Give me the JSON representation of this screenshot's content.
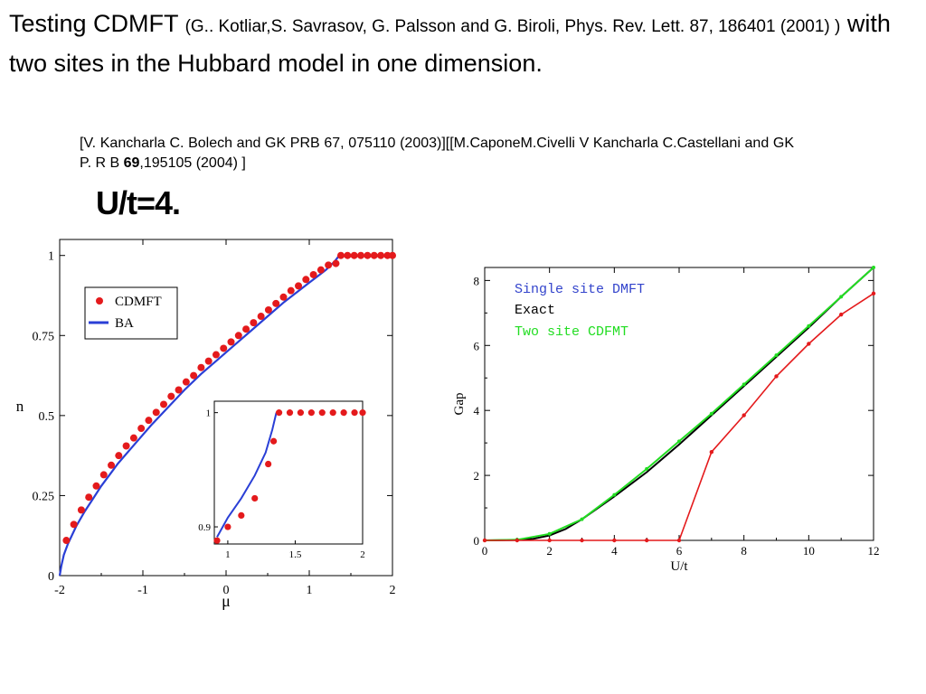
{
  "heading": {
    "part1": "Testing    CDMFT",
    "citation": "(G.. Kotliar,S. Savrasov, G. Palsson and G. Biroli, Phys. Rev. Lett. 87, 186401 (2001) )",
    "part2": "with two sites in  the Hubbard model in one dimension."
  },
  "references": {
    "text1": "[V.  Kancharla  C.  Bolech  and  GK    PRB  67,  075110  (2003)][[M.CaponeM.Civelli    V Kancharla C.Castellani and GK  P. R B",
    "volume": "69",
    "text2": ",195105 (2004) ]"
  },
  "subtitle": "U/t=4.",
  "chart_data": [
    {
      "type": "scatter",
      "xlabel": "μ",
      "ylabel": "n",
      "xlim": [
        -2,
        2
      ],
      "ylim": [
        0,
        1.05
      ],
      "x_ticks": [
        "-2",
        "-1",
        "0",
        "1",
        "2"
      ],
      "y_ticks": [
        "0",
        "0.25",
        "0.5",
        "0.75",
        "1"
      ],
      "legend_position": "top-left",
      "series": [
        {
          "name": "CDMFT",
          "color": "#e41a1c",
          "marker": "dot",
          "x": [
            -1.92,
            -1.83,
            -1.74,
            -1.65,
            -1.56,
            -1.47,
            -1.38,
            -1.29,
            -1.2,
            -1.11,
            -1.02,
            -0.93,
            -0.84,
            -0.75,
            -0.66,
            -0.57,
            -0.48,
            -0.39,
            -0.3,
            -0.21,
            -0.12,
            -0.03,
            0.06,
            0.15,
            0.24,
            0.33,
            0.42,
            0.51,
            0.6,
            0.69,
            0.78,
            0.87,
            0.96,
            1.05,
            1.14,
            1.23,
            1.32,
            1.38,
            1.46,
            1.54,
            1.62,
            1.7,
            1.78,
            1.86,
            1.94,
            2.0
          ],
          "y": [
            0.11,
            0.16,
            0.205,
            0.245,
            0.28,
            0.315,
            0.345,
            0.375,
            0.405,
            0.43,
            0.46,
            0.485,
            0.51,
            0.535,
            0.56,
            0.58,
            0.605,
            0.625,
            0.65,
            0.67,
            0.69,
            0.71,
            0.73,
            0.75,
            0.77,
            0.79,
            0.81,
            0.83,
            0.85,
            0.87,
            0.89,
            0.905,
            0.925,
            0.94,
            0.955,
            0.97,
            0.975,
            1,
            1,
            1,
            1,
            1,
            1,
            1,
            1,
            1
          ]
        },
        {
          "name": "BA",
          "color": "#2a3fd6",
          "marker": "line",
          "x": [
            -2.0,
            -1.98,
            -1.95,
            -1.9,
            -1.8,
            -1.7,
            -1.6,
            -1.5,
            -1.3,
            -1.1,
            -0.9,
            -0.7,
            -0.5,
            -0.3,
            -0.1,
            0.1,
            0.3,
            0.5,
            0.7,
            0.9,
            1.0,
            1.1,
            1.2,
            1.26,
            1.3,
            1.33,
            1.36
          ],
          "y": [
            0,
            0.03,
            0.065,
            0.1,
            0.155,
            0.2,
            0.24,
            0.28,
            0.35,
            0.41,
            0.47,
            0.525,
            0.58,
            0.63,
            0.675,
            0.72,
            0.765,
            0.81,
            0.855,
            0.895,
            0.915,
            0.935,
            0.955,
            0.97,
            0.98,
            0.99,
            1.0
          ]
        }
      ],
      "inset": {
        "xlim": [
          0.9,
          2.0
        ],
        "ylim": [
          0.885,
          1.01
        ],
        "x_ticks": [
          "1",
          "1.5",
          "2"
        ],
        "y_ticks": [
          "0.9",
          "1"
        ],
        "series": [
          {
            "name": "CDMFT",
            "color": "#e41a1c",
            "x": [
              0.92,
              1.0,
              1.1,
              1.2,
              1.3,
              1.34,
              1.38,
              1.46,
              1.54,
              1.62,
              1.7,
              1.78,
              1.86,
              1.94,
              2.0
            ],
            "y": [
              0.888,
              0.9,
              0.91,
              0.925,
              0.955,
              0.975,
              1,
              1,
              1,
              1,
              1,
              1,
              1,
              1,
              1
            ]
          },
          {
            "name": "BA",
            "color": "#2a3fd6",
            "x": [
              0.92,
              1.0,
              1.1,
              1.2,
              1.28,
              1.33,
              1.36
            ],
            "y": [
              0.891,
              0.908,
              0.925,
              0.945,
              0.965,
              0.985,
              1.0
            ]
          }
        ]
      }
    },
    {
      "type": "line",
      "xlabel": "U/t",
      "ylabel": "Gap",
      "xlim": [
        0,
        12
      ],
      "ylim": [
        0,
        8.4
      ],
      "x_ticks": [
        "0",
        "2",
        "4",
        "6",
        "8",
        "10",
        "12"
      ],
      "y_ticks": [
        "0",
        "2",
        "4",
        "6",
        "8"
      ],
      "legend_position": "top-left",
      "series": [
        {
          "name": "Single site DMFT",
          "color": "#e41a1c",
          "legend_color": "#3344cc",
          "x": [
            0,
            1,
            2,
            3,
            4,
            5,
            6,
            7,
            8,
            9,
            10,
            11,
            12
          ],
          "y": [
            0,
            0,
            0,
            0,
            0,
            0,
            0,
            2.72,
            3.85,
            5.05,
            6.05,
            6.95,
            7.6
          ]
        },
        {
          "name": "Exact",
          "color": "#000000",
          "x": [
            0,
            1,
            1.5,
            2,
            2.5,
            3,
            3.5,
            4,
            5,
            6,
            7,
            8,
            9,
            10,
            11,
            12
          ],
          "y": [
            0,
            0.01,
            0.05,
            0.15,
            0.35,
            0.65,
            1.0,
            1.35,
            2.1,
            2.95,
            3.85,
            4.75,
            5.65,
            6.55,
            7.5,
            8.4
          ]
        },
        {
          "name": "Two site CDFMT",
          "color": "#22dd22",
          "x": [
            0,
            1,
            2,
            3,
            4,
            5,
            6,
            7,
            8,
            9,
            10,
            11,
            12
          ],
          "y": [
            0,
            0.02,
            0.2,
            0.65,
            1.4,
            2.2,
            3.05,
            3.9,
            4.8,
            5.7,
            6.6,
            7.5,
            8.4
          ]
        }
      ]
    }
  ]
}
